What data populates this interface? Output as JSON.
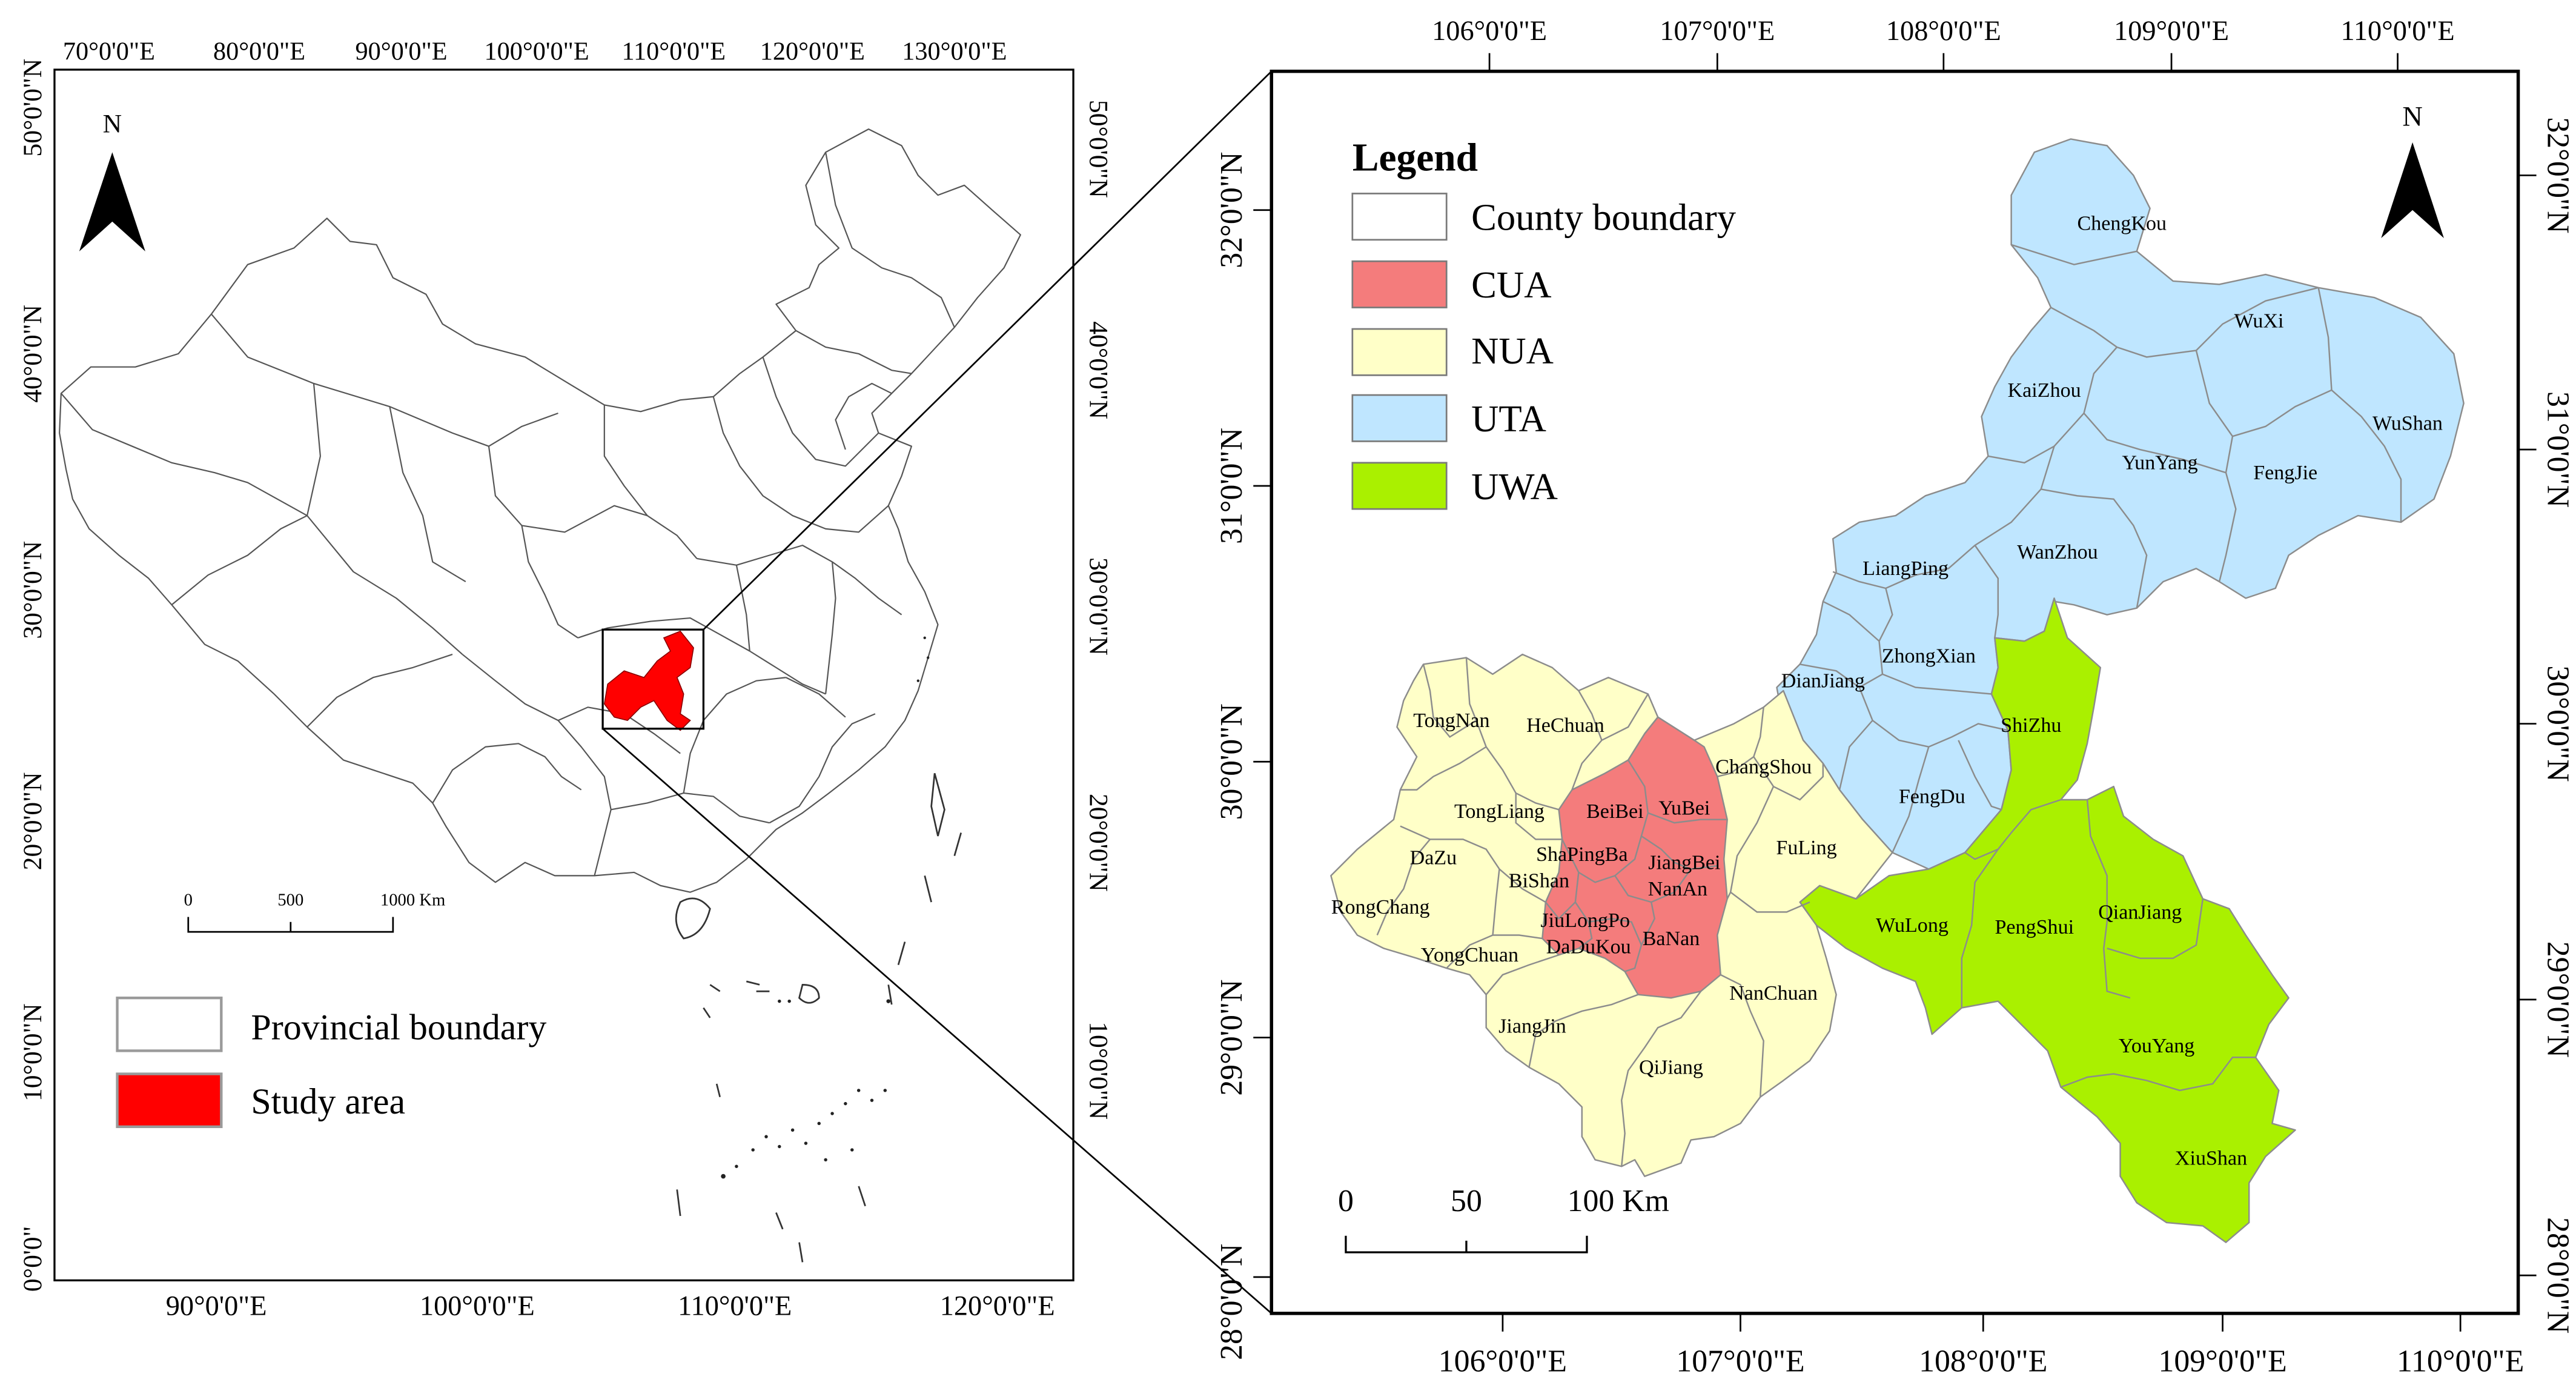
{
  "left_map": {
    "top_ticks": [
      "70°0'0\"E",
      "80°0'0\"E",
      "90°0'0\"E",
      "100°0'0\"E",
      "110°0'0\"E",
      "120°0'0\"E",
      "130°0'0\"E"
    ],
    "bottom_ticks": [
      "90°0'0\"E",
      "100°0'0\"E",
      "110°0'0\"E",
      "120°0'0\"E"
    ],
    "left_ticks": [
      "50°0'0\"N",
      "40°0'0\"N",
      "30°0'0\"N",
      "20°0'0\"N",
      "10°0'0\"N",
      "0°0'0\""
    ],
    "right_ticks": [
      "50°0'0\"N",
      "40°0'0\"N",
      "30°0'0\"N",
      "20°0'0\"N",
      "10°0'0\"N"
    ],
    "north_label": "N",
    "scale": {
      "labels": [
        "0",
        "500",
        "1000 Km"
      ]
    },
    "legend": [
      {
        "label": "Provincial boundary",
        "fill": "#ffffff",
        "stroke": "#9a9a9a"
      },
      {
        "label": "Study area",
        "fill": "#ff0000",
        "stroke": "#9a9a9a"
      }
    ]
  },
  "right_map": {
    "top_ticks": [
      "106°0'0\"E",
      "107°0'0\"E",
      "108°0'0\"E",
      "109°0'0\"E",
      "110°0'0\"E"
    ],
    "bottom_ticks": [
      "106°0'0\"E",
      "107°0'0\"E",
      "108°0'0\"E",
      "109°0'0\"E",
      "110°0'0\"E"
    ],
    "left_ticks": [
      "32°0'0\"N",
      "31°0'0\"N",
      "30°0'0\"N",
      "29°0'0\"N",
      "28°0'0\"N"
    ],
    "right_ticks": [
      "32°0'0\"N",
      "31°0'0\"N",
      "30°0'0\"N",
      "29°0'0\"N",
      "28°0'0\"N"
    ],
    "north_label": "N",
    "scale": {
      "labels": [
        "0",
        "50",
        "100 Km"
      ]
    },
    "legend_title": "Legend",
    "legend": [
      {
        "label": "County boundary",
        "fill": "#ffffff"
      },
      {
        "label": "CUA",
        "fill": "#f47c7c"
      },
      {
        "label": "NUA",
        "fill": "#ffffc8"
      },
      {
        "label": "UTA",
        "fill": "#bfe6ff"
      },
      {
        "label": "UWA",
        "fill": "#aaf000"
      }
    ],
    "counties": {
      "uta": [
        "ChengKou",
        "WuXi",
        "KaiZhou",
        "WuShan",
        "YunYang",
        "FengJie",
        "LiangPing",
        "WanZhou",
        "ZhongXian",
        "DianJiang",
        "FengDu"
      ],
      "uwa": [
        "ShiZhu",
        "WuLong",
        "PengShui",
        "QianJiang",
        "YouYang",
        "XiuShan"
      ],
      "nua": [
        "TongNan",
        "HeChuan",
        "TongLiang",
        "DaZu",
        "RongChang",
        "BiShan",
        "YongChuan",
        "JiangJin",
        "QiJiang",
        "NanChuan",
        "FuLing",
        "ChangShou"
      ],
      "cua": [
        "BeiBei",
        "YuBei",
        "ShaPingBa",
        "JiangBei",
        "NanAn",
        "JiuLongPo",
        "DaDuKou",
        "BaNan"
      ]
    }
  }
}
